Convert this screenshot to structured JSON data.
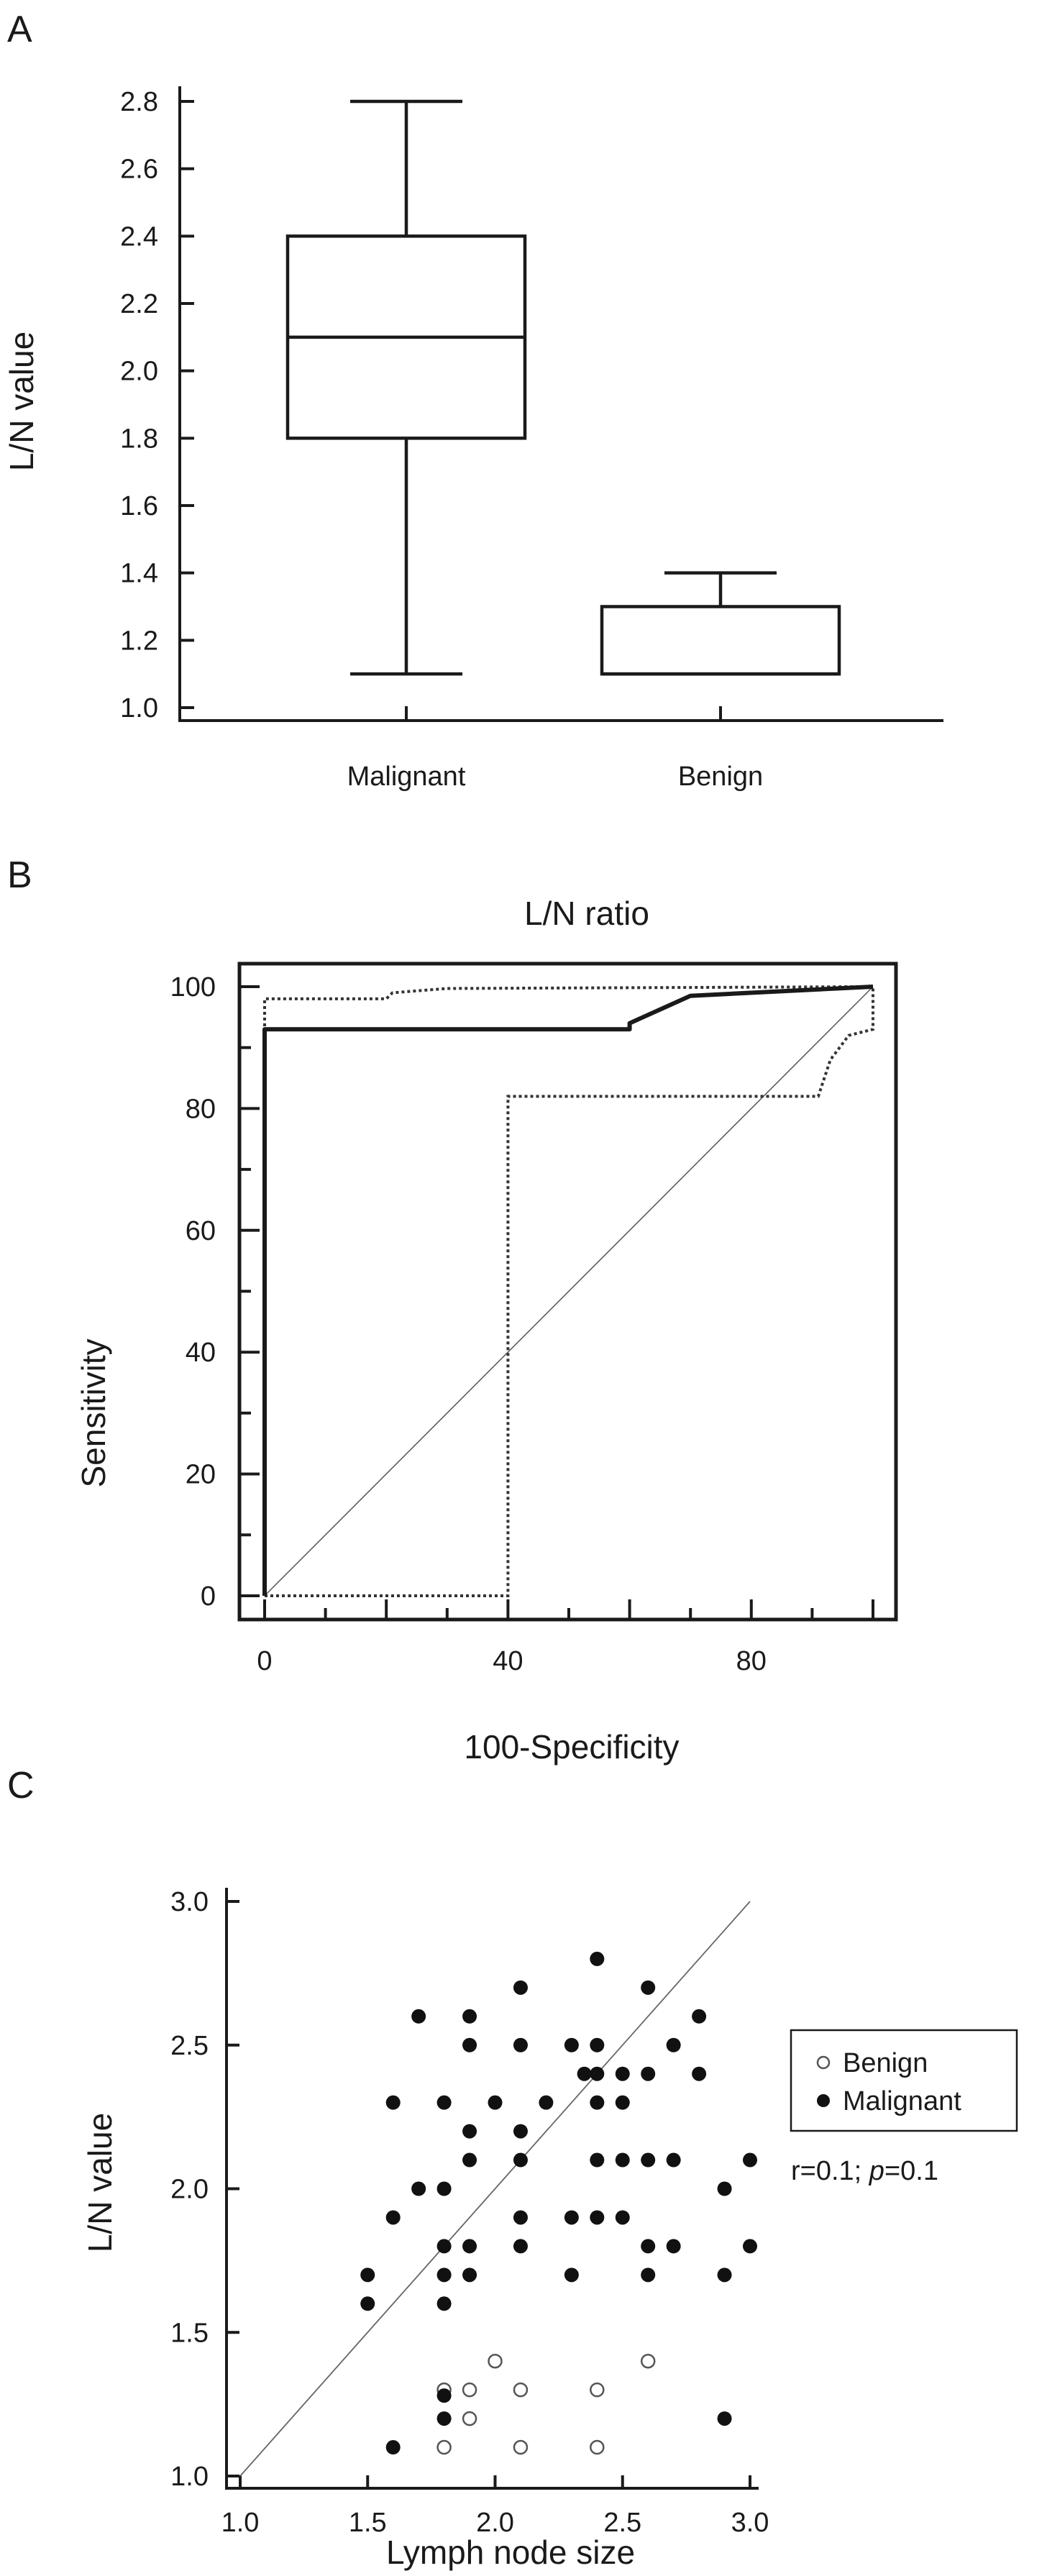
{
  "chart_data": [
    {
      "panel": "A",
      "type": "box",
      "ylabel": "L/N value",
      "ylim": [
        1.0,
        2.8
      ],
      "yticks": [
        1.0,
        1.2,
        1.4,
        1.6,
        1.8,
        2.0,
        2.2,
        2.4,
        2.6,
        2.8
      ],
      "categories": [
        "Malignant",
        "Benign"
      ],
      "boxes": [
        {
          "min": 1.1,
          "q1": 1.8,
          "median": 2.1,
          "q3": 2.4,
          "max": 2.8
        },
        {
          "min": 1.1,
          "q1": 1.1,
          "median": 1.1,
          "q3": 1.3,
          "max": 1.4
        }
      ]
    },
    {
      "panel": "B",
      "type": "line",
      "title": "L/N ratio",
      "xlabel": "100-Specificity",
      "ylabel": "Sensitivity",
      "xlim": [
        0,
        100
      ],
      "ylim": [
        0,
        100
      ],
      "xticks": [
        0,
        40,
        80
      ],
      "yticks": [
        0,
        20,
        40,
        60,
        80,
        100
      ],
      "series": [
        {
          "style": "solid-thick",
          "points": [
            [
              0,
              0
            ],
            [
              0,
              93
            ],
            [
              60,
              93
            ],
            [
              60,
              94
            ],
            [
              70,
              98.5
            ],
            [
              100,
              100
            ]
          ]
        },
        {
          "style": "dotted",
          "points": [
            [
              0,
              0
            ],
            [
              0,
              98
            ],
            [
              20,
              98
            ],
            [
              21,
              99
            ],
            [
              30,
              99.7
            ],
            [
              100,
              100
            ]
          ]
        },
        {
          "style": "dotted",
          "points": [
            [
              0,
              0
            ],
            [
              40,
              0
            ],
            [
              40,
              82
            ],
            [
              91,
              82
            ],
            [
              93,
              88
            ],
            [
              96,
              92
            ],
            [
              100,
              93
            ],
            [
              100,
              100
            ]
          ]
        },
        {
          "style": "diagonal-thin",
          "points": [
            [
              0,
              0
            ],
            [
              100,
              100
            ]
          ]
        }
      ]
    },
    {
      "panel": "C",
      "type": "scatter",
      "xlabel": "Lymph node size",
      "ylabel": "L/N value",
      "xlim": [
        1.0,
        3.0
      ],
      "ylim": [
        1.0,
        3.0
      ],
      "xticks": [
        "1.0",
        "1.5",
        "2.0",
        "2.5",
        "3.0"
      ],
      "yticks": [
        "1.0",
        "1.5",
        "2.0",
        "2.5",
        "3.0"
      ],
      "legend": [
        "Benign",
        "Malignant"
      ],
      "legend_position": "right",
      "annotation": {
        "prefix": "r=0.1; ",
        "p": "p",
        "suffix": "=0.1"
      },
      "series": [
        {
          "name": "Benign",
          "marker": "open-circle",
          "points": [
            [
              1.8,
              1.3
            ],
            [
              1.9,
              1.3
            ],
            [
              2.0,
              1.4
            ],
            [
              2.1,
              1.3
            ],
            [
              2.4,
              1.3
            ],
            [
              2.6,
              1.4
            ],
            [
              1.9,
              1.2
            ],
            [
              1.8,
              1.1
            ],
            [
              2.1,
              1.1
            ],
            [
              2.4,
              1.1
            ]
          ]
        },
        {
          "name": "Malignant",
          "marker": "filled-circle",
          "points": [
            [
              1.5,
              1.7
            ],
            [
              1.5,
              1.6
            ],
            [
              1.6,
              1.9
            ],
            [
              1.6,
              2.3
            ],
            [
              1.6,
              1.1
            ],
            [
              1.7,
              2.0
            ],
            [
              1.7,
              2.6
            ],
            [
              1.8,
              2.0
            ],
            [
              1.8,
              2.3
            ],
            [
              1.8,
              1.8
            ],
            [
              1.8,
              1.7
            ],
            [
              1.8,
              1.6
            ],
            [
              1.8,
              1.28
            ],
            [
              1.8,
              1.2
            ],
            [
              1.9,
              2.6
            ],
            [
              1.9,
              2.5
            ],
            [
              1.9,
              2.2
            ],
            [
              1.9,
              2.1
            ],
            [
              1.9,
              1.8
            ],
            [
              1.9,
              1.7
            ],
            [
              2.0,
              2.3
            ],
            [
              2.1,
              2.7
            ],
            [
              2.1,
              2.5
            ],
            [
              2.1,
              2.2
            ],
            [
              2.1,
              2.1
            ],
            [
              2.1,
              1.9
            ],
            [
              2.1,
              1.8
            ],
            [
              2.2,
              2.3
            ],
            [
              2.3,
              2.5
            ],
            [
              2.3,
              1.9
            ],
            [
              2.3,
              1.7
            ],
            [
              2.35,
              2.4
            ],
            [
              2.4,
              2.8
            ],
            [
              2.4,
              2.5
            ],
            [
              2.4,
              2.4
            ],
            [
              2.4,
              2.3
            ],
            [
              2.4,
              2.1
            ],
            [
              2.4,
              1.9
            ],
            [
              2.5,
              2.4
            ],
            [
              2.5,
              2.3
            ],
            [
              2.5,
              2.1
            ],
            [
              2.5,
              1.9
            ],
            [
              2.6,
              2.7
            ],
            [
              2.6,
              2.4
            ],
            [
              2.6,
              2.1
            ],
            [
              2.6,
              1.8
            ],
            [
              2.6,
              1.7
            ],
            [
              2.7,
              2.5
            ],
            [
              2.7,
              2.1
            ],
            [
              2.7,
              1.8
            ],
            [
              2.8,
              2.6
            ],
            [
              2.8,
              2.4
            ],
            [
              2.9,
              2.0
            ],
            [
              2.9,
              1.7
            ],
            [
              2.9,
              1.2
            ],
            [
              3.0,
              2.1
            ],
            [
              3.0,
              1.8
            ]
          ]
        },
        {
          "name": "",
          "marker": "identity-line",
          "points": [
            [
              1.0,
              1.0
            ],
            [
              3.0,
              3.0
            ]
          ]
        }
      ]
    }
  ],
  "panels": {
    "a": "A",
    "b": "B",
    "c": "C"
  }
}
